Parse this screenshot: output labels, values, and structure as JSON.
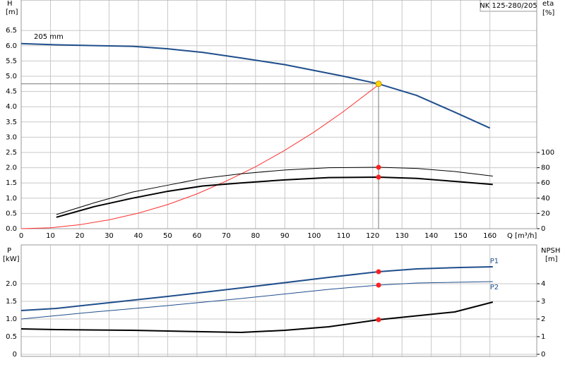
{
  "chart_data": [
    {
      "type": "line",
      "title": "NK 125-280/205",
      "x_label": "Q [m³/h]",
      "y_label": "H",
      "y_unit": "[m]",
      "y2_label": "eta",
      "y2_unit": "[%]",
      "annotation": "205 mm",
      "xlim": [
        0,
        176
      ],
      "xticks": [
        0,
        10,
        20,
        30,
        40,
        50,
        60,
        70,
        80,
        90,
        100,
        110,
        120,
        130,
        140,
        150,
        160
      ],
      "ylim": [
        0,
        7.5
      ],
      "yticks": [
        {
          "value": 0,
          "label": "0.0"
        },
        0.5,
        {
          "value": 1,
          "label": "1.0"
        },
        1.5,
        {
          "value": 2,
          "label": "2.0"
        },
        2.5,
        {
          "value": 3,
          "label": "3.0"
        },
        3.5,
        {
          "value": 4,
          "label": "4.0"
        },
        4.5,
        {
          "value": 5,
          "label": "5.0"
        },
        5.5,
        {
          "value": 6,
          "label": "6.0"
        },
        6.5
      ],
      "y2lim": [
        0,
        300
      ],
      "y2ticks": [
        0,
        20,
        40,
        60,
        80,
        100
      ],
      "grid": true,
      "operating_point": {
        "x": 122,
        "y": 4.75,
        "color": "#ffd700"
      },
      "series": [
        {
          "color": "#1f4e8c",
          "style": "thick",
          "x": [
            0,
            12,
            38,
            50,
            62,
            75,
            90,
            110,
            122,
            135,
            148,
            160
          ],
          "values": [
            6.07,
            6.03,
            5.98,
            5.9,
            5.78,
            5.6,
            5.38,
            5.0,
            4.75,
            4.37,
            3.82,
            3.3
          ]
        },
        {
          "color": "#ff3030",
          "style": "thin",
          "x": [
            0,
            10,
            20,
            30,
            40,
            50,
            60,
            70,
            80,
            90,
            100,
            110,
            122
          ],
          "values": [
            0,
            0.03,
            0.13,
            0.29,
            0.51,
            0.79,
            1.14,
            1.56,
            2.03,
            2.57,
            3.17,
            3.84,
            4.72
          ]
        },
        {
          "color": "#000000",
          "style": "thin",
          "axis": "y2",
          "x": [
            12,
            25,
            38,
            50,
            62,
            75,
            90,
            105,
            122,
            135,
            148,
            161
          ],
          "values": [
            18.5,
            34,
            48,
            57,
            66,
            72,
            77,
            80,
            80.5,
            79,
            75,
            69
          ],
          "point": {
            "x": 122,
            "y": 80.5,
            "color": "#ff2020"
          }
        },
        {
          "color": "#000000",
          "style": "thick",
          "axis": "y2",
          "x": [
            12,
            25,
            38,
            50,
            62,
            75,
            90,
            105,
            122,
            135,
            148,
            161
          ],
          "values": [
            15,
            29,
            40,
            49,
            56,
            60,
            64,
            67,
            67.6,
            66,
            62,
            58
          ],
          "point": {
            "x": 122,
            "y": 67.6,
            "color": "#ff2020"
          }
        }
      ]
    },
    {
      "type": "line",
      "y_label": "P",
      "y_unit": "[kW]",
      "y2_label": "NPSH",
      "y2_unit": "[m]",
      "xlim": [
        0,
        176
      ],
      "ylim": [
        -0.06,
        3.1
      ],
      "yticks": [
        0,
        0.5,
        {
          "value": 1,
          "label": "1.0"
        },
        1.5,
        {
          "value": 2,
          "label": "2.0"
        }
      ],
      "y2lim": [
        -0.12,
        6.2
      ],
      "y2ticks": [
        0,
        1,
        2,
        3,
        4
      ],
      "grid": true,
      "series": [
        {
          "name": "P1",
          "color": "#1f4e8c",
          "style": "thick",
          "x": [
            0,
            12,
            50,
            75,
            105,
            122,
            135,
            150,
            161
          ],
          "values": [
            1.24,
            1.3,
            1.64,
            1.88,
            2.18,
            2.34,
            2.42,
            2.46,
            2.48
          ],
          "point": {
            "x": 122,
            "y": 2.34,
            "color": "#ff2020"
          }
        },
        {
          "name": "P2",
          "color": "#1f4e8c",
          "style": "thin",
          "x": [
            0,
            25,
            50,
            75,
            105,
            122,
            135,
            161
          ],
          "values": [
            1.0,
            1.2,
            1.38,
            1.58,
            1.84,
            1.96,
            2.02,
            2.06
          ],
          "point": {
            "x": 122,
            "y": 1.96,
            "color": "#ff2020"
          }
        },
        {
          "color": "#000000",
          "style": "thick",
          "axis": "y2",
          "x": [
            0,
            12,
            38,
            62,
            75,
            90,
            105,
            122,
            148,
            161
          ],
          "values": [
            1.44,
            1.4,
            1.36,
            1.28,
            1.24,
            1.36,
            1.56,
            1.96,
            2.4,
            2.96
          ],
          "point": {
            "x": 122,
            "y": 1.96,
            "color": "#ff2020"
          }
        }
      ]
    }
  ]
}
